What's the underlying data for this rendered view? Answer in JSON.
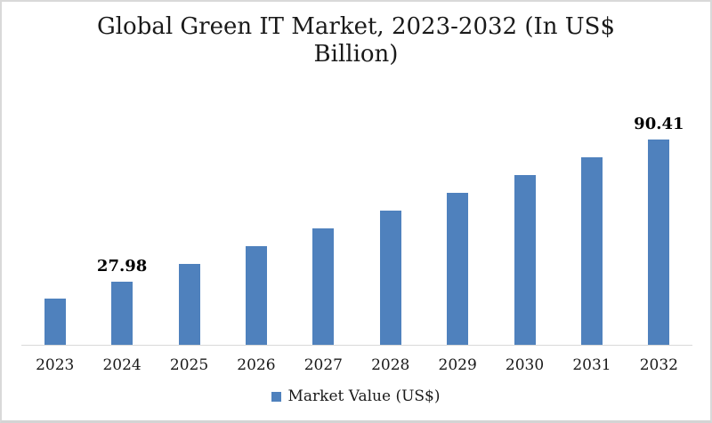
{
  "chart": {
    "title": "Global Green IT Market, 2023-2032 (In US$ Billion)",
    "legend": {
      "label": "Market Value (US$)"
    },
    "colors": {
      "bar": "#4f81bd",
      "axis_line": "#d9d9d9",
      "text": "#1a1a1a",
      "background": "#ffffff"
    }
  },
  "chart_data": {
    "type": "bar",
    "title": "Global Green IT Market, 2023-2032 (In US$ Billion)",
    "categories": [
      "2023",
      "2024",
      "2025",
      "2026",
      "2027",
      "2028",
      "2029",
      "2030",
      "2031",
      "2032"
    ],
    "series": [
      {
        "name": "Market Value (US$)",
        "values": [
          20.2,
          27.98,
          35.8,
          43.6,
          51.4,
          59.2,
          67.0,
          74.8,
          82.6,
          90.41
        ]
      }
    ],
    "data_labels": [
      "",
      "27.98",
      "",
      "",
      "",
      "",
      "",
      "",
      "",
      "90.41"
    ],
    "xlabel": "",
    "ylabel": "",
    "ylim": [
      0,
      100
    ],
    "grid": false,
    "y_axis_visible": false,
    "legend_position": "bottom"
  }
}
